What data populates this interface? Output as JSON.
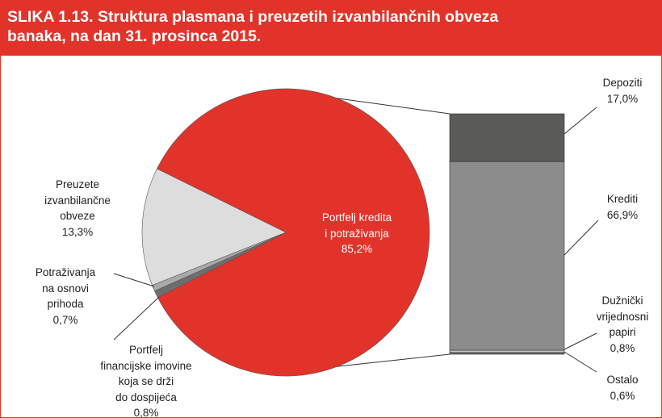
{
  "chart_data": {
    "type": "pie",
    "title": "SLIKA 1.13. Struktura plasmana i preuzetih izvanbilančnih obveza\nbanaka, na dan 31. prosinca 2015.",
    "categories": [
      "Portfelj kredita\ni potraživanja",
      "Portfelj\nfinancijske imovine\nkoja se drži\ndo dospijeća",
      "Potraživanja\nna osnovi\nprihoda",
      "Preuzete\nizvanbilančne\nobveze"
    ],
    "values": [
      85.2,
      0.8,
      0.7,
      13.3
    ],
    "value_labels": [
      "85,2%",
      "0,8%",
      "0,7%",
      "13,3%"
    ],
    "colors": [
      "#e2332a",
      "#6e6e6e",
      "#a9a9a9",
      "#dddddd"
    ],
    "bar": {
      "categories": [
        "Depoziti",
        "Krediti",
        "Dužnički\nvrijednosni\npapiri",
        "Ostalo"
      ],
      "values": [
        17.0,
        66.9,
        0.8,
        0.6
      ],
      "value_labels": [
        "17,0%",
        "66,9%",
        "0,8%",
        "0,6%"
      ],
      "colors": [
        "#5a5a58",
        "#8c8c8c",
        "#c4c4c4",
        "#6a6a6a"
      ]
    }
  }
}
